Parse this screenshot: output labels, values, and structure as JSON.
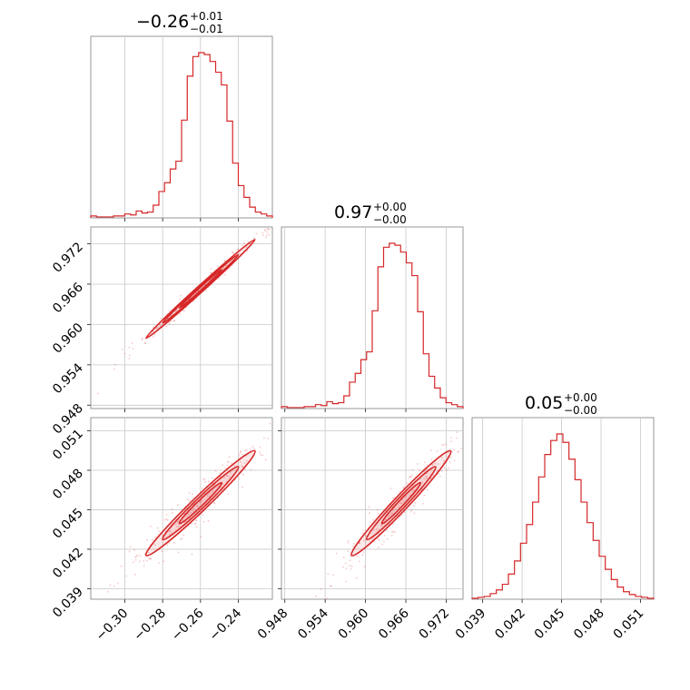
{
  "chart_data": {
    "type": "corner",
    "color": "#d62728",
    "grid": true,
    "parameters": [
      {
        "title_value": "−0.26",
        "title_upper": "+0.01",
        "title_lower": "−0.01",
        "range": [
          -0.318,
          -0.222
        ],
        "ticks": [
          -0.3,
          -0.28,
          -0.26,
          -0.24
        ],
        "tick_labels": [
          "−0.30",
          "−0.28",
          "−0.26",
          "−0.24"
        ],
        "histogram": {
          "bin_edges_range": [
            -0.318,
            -0.222
          ],
          "counts": [
            2,
            1,
            1,
            1,
            2,
            2,
            4,
            3,
            7,
            5,
            6,
            13,
            27,
            36,
            50,
            58,
            100,
            145,
            165,
            169,
            167,
            160,
            149,
            136,
            99,
            56,
            33,
            21,
            11,
            6,
            4,
            2
          ]
        }
      },
      {
        "title_value": "0.97",
        "title_upper": "+0.00",
        "title_lower": "−0.00",
        "range": [
          0.9475,
          0.9745
        ],
        "ticks": [
          0.948,
          0.954,
          0.96,
          0.966,
          0.972
        ],
        "tick_labels": [
          "0.948",
          "0.954",
          "0.960",
          "0.966",
          "0.972"
        ],
        "histogram": {
          "bin_edges_range": [
            0.9475,
            0.9745
          ],
          "counts": [
            2,
            1,
            1,
            1,
            2,
            2,
            4,
            3,
            7,
            5,
            6,
            13,
            27,
            36,
            50,
            58,
            100,
            145,
            165,
            169,
            167,
            160,
            149,
            136,
            99,
            56,
            33,
            21,
            11,
            6,
            4,
            2
          ]
        }
      },
      {
        "title_value": "0.05",
        "title_upper": "+0.00",
        "title_lower": "−0.00",
        "range": [
          0.0382,
          0.052
        ],
        "ticks": [
          0.039,
          0.042,
          0.045,
          0.048,
          0.051
        ],
        "tick_labels": [
          "0.039",
          "0.042",
          "0.045",
          "0.048",
          "0.051"
        ],
        "histogram": {
          "bin_edges_range": [
            0.0382,
            0.052
          ],
          "counts": [
            1,
            2,
            3,
            6,
            10,
            16,
            27,
            41,
            60,
            80,
            104,
            131,
            155,
            170,
            177,
            168,
            150,
            128,
            104,
            82,
            63,
            46,
            32,
            21,
            13,
            8,
            5,
            3,
            2,
            1
          ]
        }
      }
    ]
  }
}
